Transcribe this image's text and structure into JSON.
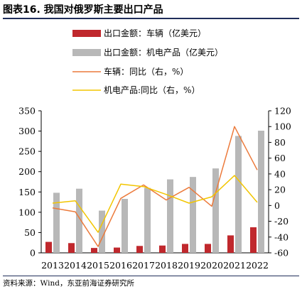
{
  "figure": {
    "title": "图表16. 我国对俄罗斯主要出口产品",
    "source": "资料来源：Wind，东亚前海证券研究所"
  },
  "chart_data": {
    "type": "bar",
    "categories": [
      "2013",
      "2014",
      "2015",
      "2016",
      "2017",
      "2018",
      "2019",
      "2020",
      "2021",
      "2022"
    ],
    "series": [
      {
        "name": "出口金额：车辆（亿美元）",
        "type": "bar",
        "axis": "left",
        "color": "#c0282d",
        "values": [
          27,
          24,
          12,
          13,
          17,
          18,
          22,
          22,
          43,
          63
        ]
      },
      {
        "name": "出口金额：机电产品（亿美元）",
        "type": "bar",
        "axis": "left",
        "color": "#b8b8b8",
        "values": [
          148,
          158,
          104,
          133,
          160,
          181,
          187,
          208,
          288,
          301
        ]
      },
      {
        "name": "车辆：同比（右，%）",
        "type": "line",
        "axis": "right",
        "color": "#ec7a3b",
        "values": [
          -3,
          -8,
          -52,
          9,
          26,
          7,
          23,
          -1,
          100,
          45
        ]
      },
      {
        "name": "机电产品:同比（右，%）",
        "type": "line",
        "axis": "right",
        "color": "#f2c500",
        "values": [
          3,
          6,
          -34,
          27,
          24,
          14,
          3,
          11,
          38,
          4
        ]
      }
    ],
    "y_left": {
      "min": 0,
      "max": 350,
      "ticks": [
        0,
        50,
        100,
        150,
        200,
        250,
        300,
        350
      ]
    },
    "y_right": {
      "min": -60,
      "max": 120,
      "ticks": [
        -60,
        -40,
        -20,
        0,
        20,
        40,
        60,
        80,
        100,
        120
      ]
    },
    "grid": false,
    "legend_position": "top"
  }
}
